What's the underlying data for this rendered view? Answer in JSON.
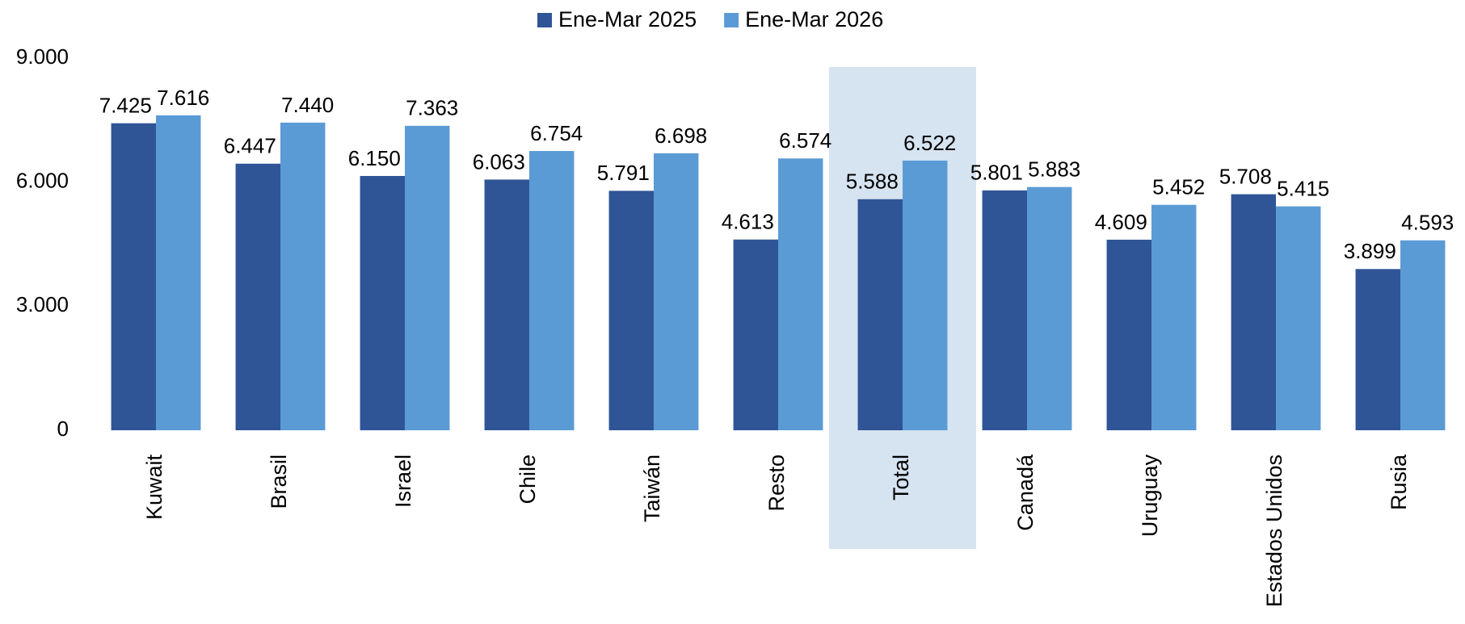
{
  "chart_data": {
    "type": "bar",
    "categories": [
      "Kuwait",
      "Brasil",
      "Israel",
      "Chile",
      "Taiwán",
      "Resto",
      "Total",
      "Canadá",
      "Uruguay",
      "Estados Unidos",
      "Rusia"
    ],
    "series": [
      {
        "name": "Ene-Mar 2025",
        "color": "#2f5597",
        "values": [
          7425,
          6447,
          6150,
          6063,
          5791,
          4613,
          5588,
          5801,
          4609,
          5708,
          3899
        ],
        "value_labels": [
          "7.425",
          "6.447",
          "6.150",
          "6.063",
          "5.791",
          "4.613",
          "5.588",
          "5.801",
          "4.609",
          "5.708",
          "3.899"
        ]
      },
      {
        "name": "Ene-Mar 2026",
        "color": "#5b9bd5",
        "values": [
          7616,
          7440,
          7363,
          6754,
          6698,
          6574,
          6522,
          5883,
          5452,
          5415,
          4593
        ],
        "value_labels": [
          "7.616",
          "7.440",
          "7.363",
          "6.754",
          "6.698",
          "6.574",
          "6.522",
          "5.883",
          "5.452",
          "5.415",
          "4.593"
        ]
      }
    ],
    "ylim": [
      0,
      9000
    ],
    "yticks": [
      0,
      {
        "value": 3000,
        "label": "3.000"
      },
      {
        "value": 6000,
        "label": "6.000"
      },
      {
        "value": 9000,
        "label": "9.000"
      }
    ],
    "grid": false,
    "legend": "top",
    "highlight": "Total",
    "highlight_color": "#d6e3f0"
  }
}
